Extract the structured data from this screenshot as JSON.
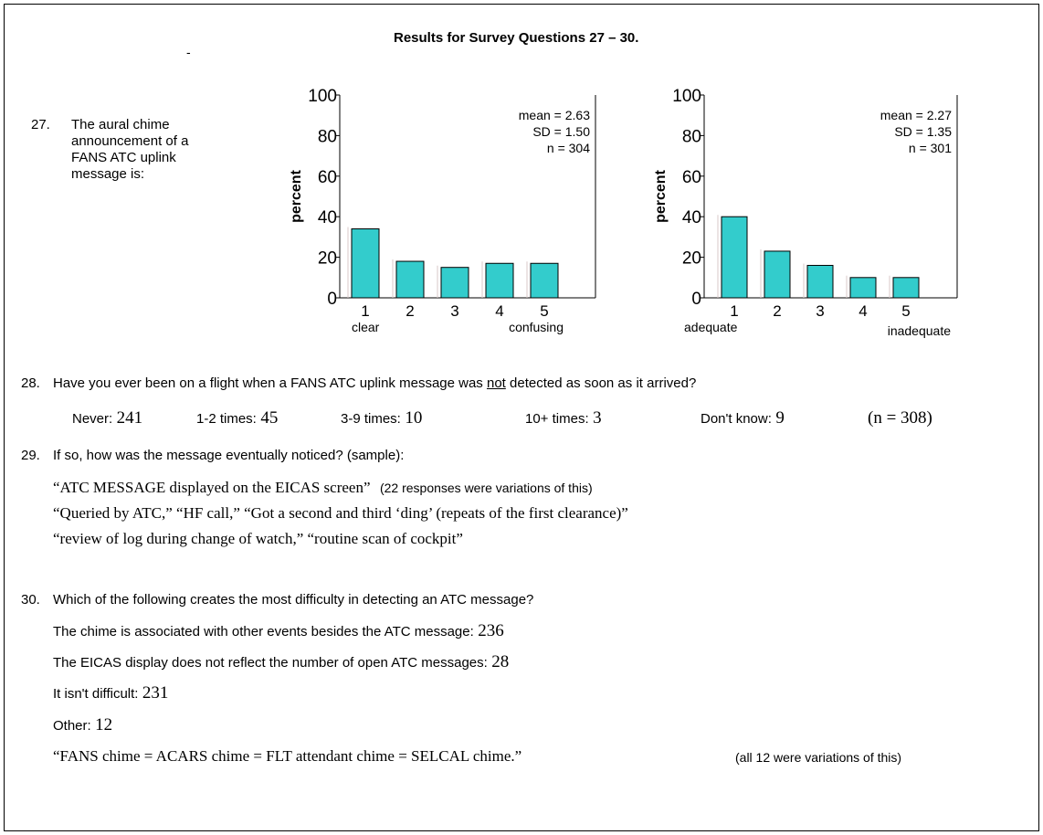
{
  "title": "Results for Survey Questions 27 – 30.",
  "stray_mark": "-",
  "q27": {
    "number": "27.",
    "lines": [
      "The aural chime",
      "announcement of a",
      "FANS ATC uplink",
      "message is:"
    ]
  },
  "chart_data": [
    {
      "type": "bar",
      "categories": [
        "1",
        "2",
        "3",
        "4",
        "5"
      ],
      "values": [
        34,
        18,
        15,
        17,
        17
      ],
      "ylabel": "percent",
      "ylim": [
        0,
        100
      ],
      "yticks": [
        "0",
        "20",
        "40",
        "60",
        "80",
        "100"
      ],
      "anchor_low": "clear",
      "anchor_high": "confusing",
      "stats": [
        "mean = 2.63",
        "SD = 1.50",
        "n = 304"
      ],
      "bar_color": "#33CCCC",
      "grid": false
    },
    {
      "type": "bar",
      "categories": [
        "1",
        "2",
        "3",
        "4",
        "5"
      ],
      "values": [
        40,
        23,
        16,
        10,
        10
      ],
      "ylabel": "percent",
      "ylim": [
        0,
        100
      ],
      "yticks": [
        "0",
        "20",
        "40",
        "60",
        "80",
        "100"
      ],
      "anchor_low": "adequate",
      "anchor_high": "inadequate",
      "stats": [
        "mean = 2.27",
        "SD = 1.35",
        "n = 301"
      ],
      "bar_color": "#33CCCC",
      "grid": false
    }
  ],
  "q28": {
    "number": "28.",
    "text_before": "Have you ever been on a flight when a FANS ATC uplink message was ",
    "text_underlined": "not",
    "text_after": " detected as soon as it arrived?",
    "answers": [
      {
        "label": "Never:",
        "value": "241"
      },
      {
        "label": "1-2 times:",
        "value": "45"
      },
      {
        "label": "3-9 times:",
        "value": "10"
      },
      {
        "label": "10+ times:",
        "value": "3"
      },
      {
        "label": "Don't know:",
        "value": "9"
      }
    ],
    "n": "(n = 308)"
  },
  "q29": {
    "number": "29.",
    "text": "If so, how was the message eventually noticed? (sample):",
    "quote1": "“ATC MESSAGE displayed on the EICAS screen”",
    "note1": "(22 responses were variations of this)",
    "quote2": "“Queried by ATC,” “HF call,” “Got a second and third ‘ding’ (repeats of the first clearance)”",
    "quote3": "“review of log during change of watch,” “routine scan of cockpit”"
  },
  "q30": {
    "number": "30.",
    "text": "Which of the following creates the most difficulty in detecting an ATC message?",
    "options": [
      {
        "label": "The chime is associated with other events besides the ATC message:",
        "value": "236"
      },
      {
        "label": "The EICAS display does not reflect the number of open ATC messages:",
        "value": "28"
      },
      {
        "label": "It isn't difficult:",
        "value": "231"
      },
      {
        "label": "Other:",
        "value": "12"
      }
    ],
    "quote": "“FANS chime = ACARS chime = FLT attendant chime = SELCAL chime.”",
    "note": "(all 12 were variations of this)"
  }
}
